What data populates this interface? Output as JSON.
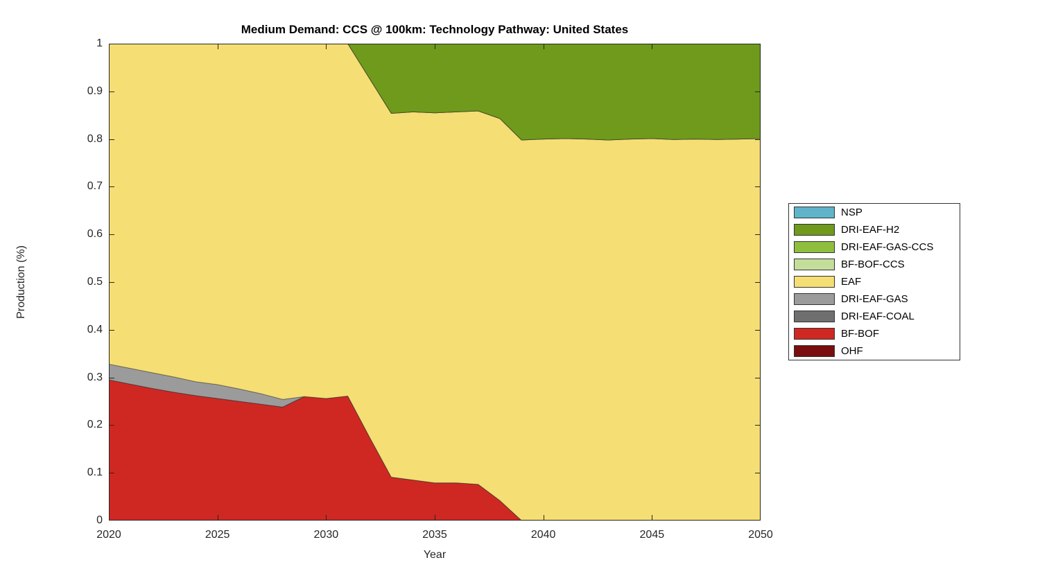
{
  "title": "Medium Demand: CCS @ 100km: Technology Pathway: United States",
  "axes": {
    "xlabel": "Year",
    "ylabel": "Production (%)",
    "axis_color": "#262626"
  },
  "chart_data": {
    "type": "area",
    "stacked": true,
    "title": "Medium Demand: CCS @ 100km: Technology Pathway: United States",
    "xlabel": "Year",
    "ylabel": "Production (%)",
    "xlim": [
      2020,
      2050
    ],
    "ylim": [
      0,
      1
    ],
    "grid": false,
    "legend_position": "right-outside",
    "xticks": [
      2020,
      2025,
      2030,
      2035,
      2040,
      2045,
      2050
    ],
    "ytick_labels": [
      "0",
      "0.1",
      "0.2",
      "0.3",
      "0.4",
      "0.5",
      "0.6",
      "0.7",
      "0.8",
      "0.9",
      "1"
    ],
    "ytick_values": [
      0,
      0.1,
      0.2,
      0.3,
      0.4,
      0.5,
      0.6,
      0.7,
      0.8,
      0.9,
      1
    ],
    "x": [
      2020,
      2021,
      2022,
      2023,
      2024,
      2025,
      2026,
      2027,
      2028,
      2029,
      2030,
      2031,
      2032,
      2033,
      2034,
      2035,
      2036,
      2037,
      2038,
      2039,
      2040,
      2041,
      2042,
      2043,
      2044,
      2045,
      2046,
      2047,
      2048,
      2049,
      2050
    ],
    "series_note": "series listed bottom-to-top in stacking order; values are production fractions per year",
    "series": [
      {
        "name": "OHF",
        "color": "#7A0D0D",
        "values": [
          0,
          0,
          0,
          0,
          0,
          0,
          0,
          0,
          0,
          0,
          0,
          0,
          0,
          0,
          0,
          0,
          0,
          0,
          0,
          0,
          0,
          0,
          0,
          0,
          0,
          0,
          0,
          0,
          0,
          0,
          0
        ]
      },
      {
        "name": "BF-BOF",
        "color": "#CF2823",
        "values": [
          0.295,
          0.286,
          0.277,
          0.269,
          0.262,
          0.256,
          0.25,
          0.244,
          0.238,
          0.26,
          0.256,
          0.261,
          0.175,
          0.091,
          0.085,
          0.079,
          0.079,
          0.076,
          0.042,
          0,
          0,
          0,
          0,
          0,
          0,
          0,
          0,
          0,
          0,
          0,
          0
        ]
      },
      {
        "name": "DRI-EAF-COAL",
        "color": "#6F6F6F",
        "values": [
          0,
          0,
          0,
          0,
          0,
          0,
          0,
          0,
          0,
          0,
          0,
          0,
          0,
          0,
          0,
          0,
          0,
          0,
          0,
          0,
          0,
          0,
          0,
          0,
          0,
          0,
          0,
          0,
          0,
          0,
          0
        ]
      },
      {
        "name": "DRI-EAF-GAS",
        "color": "#9B9B9B",
        "values": [
          0.033,
          0.033,
          0.033,
          0.032,
          0.029,
          0.029,
          0.026,
          0.022,
          0.016,
          0,
          0,
          0,
          0,
          0,
          0,
          0,
          0,
          0,
          0,
          0,
          0,
          0,
          0,
          0,
          0,
          0,
          0,
          0,
          0,
          0,
          0
        ]
      },
      {
        "name": "EAF",
        "color": "#F5DE73",
        "values": [
          0.672,
          0.681,
          0.69,
          0.699,
          0.709,
          0.715,
          0.724,
          0.734,
          0.746,
          0.74,
          0.744,
          0.739,
          0.752,
          0.763,
          0.772,
          0.776,
          0.778,
          0.783,
          0.801,
          0.798,
          0.8,
          0.801,
          0.8,
          0.798,
          0.8,
          0.801,
          0.799,
          0.8,
          0.799,
          0.8,
          0.801
        ]
      },
      {
        "name": "BF-BOF-CCS",
        "color": "#C3DE9B",
        "values": [
          0,
          0,
          0,
          0,
          0,
          0,
          0,
          0,
          0,
          0,
          0,
          0,
          0,
          0,
          0,
          0,
          0,
          0,
          0,
          0,
          0,
          0,
          0,
          0,
          0,
          0,
          0,
          0,
          0,
          0,
          0
        ]
      },
      {
        "name": "DRI-EAF-GAS-CCS",
        "color": "#8FBE3E",
        "values": [
          0,
          0,
          0,
          0,
          0,
          0,
          0,
          0,
          0,
          0,
          0,
          0,
          0,
          0,
          0,
          0,
          0,
          0,
          0,
          0,
          0,
          0,
          0,
          0,
          0,
          0,
          0,
          0,
          0,
          0,
          0
        ]
      },
      {
        "name": "DRI-EAF-H2",
        "color": "#6F9A1C",
        "values": [
          0,
          0,
          0,
          0,
          0,
          0,
          0,
          0,
          0,
          0,
          0,
          0,
          0.073,
          0.146,
          0.143,
          0.145,
          0.143,
          0.141,
          0.157,
          0.202,
          0.2,
          0.199,
          0.2,
          0.202,
          0.2,
          0.199,
          0.201,
          0.2,
          0.201,
          0.2,
          0.199
        ]
      },
      {
        "name": "NSP",
        "color": "#5FB4C9",
        "values": [
          0,
          0,
          0,
          0,
          0,
          0,
          0,
          0,
          0,
          0,
          0,
          0,
          0,
          0,
          0,
          0,
          0,
          0,
          0,
          0,
          0,
          0,
          0,
          0,
          0,
          0,
          0,
          0,
          0,
          0,
          0
        ]
      }
    ],
    "legend": [
      {
        "label": "NSP",
        "color": "#5FB4C9"
      },
      {
        "label": "DRI-EAF-H2",
        "color": "#6F9A1C"
      },
      {
        "label": "DRI-EAF-GAS-CCS",
        "color": "#8FBE3E"
      },
      {
        "label": "BF-BOF-CCS",
        "color": "#C3DE9B"
      },
      {
        "label": "EAF",
        "color": "#F5DE73"
      },
      {
        "label": "DRI-EAF-GAS",
        "color": "#9B9B9B"
      },
      {
        "label": "DRI-EAF-COAL",
        "color": "#6F6F6F"
      },
      {
        "label": "BF-BOF",
        "color": "#CF2823"
      },
      {
        "label": "OHF",
        "color": "#7A0D0D"
      }
    ]
  }
}
